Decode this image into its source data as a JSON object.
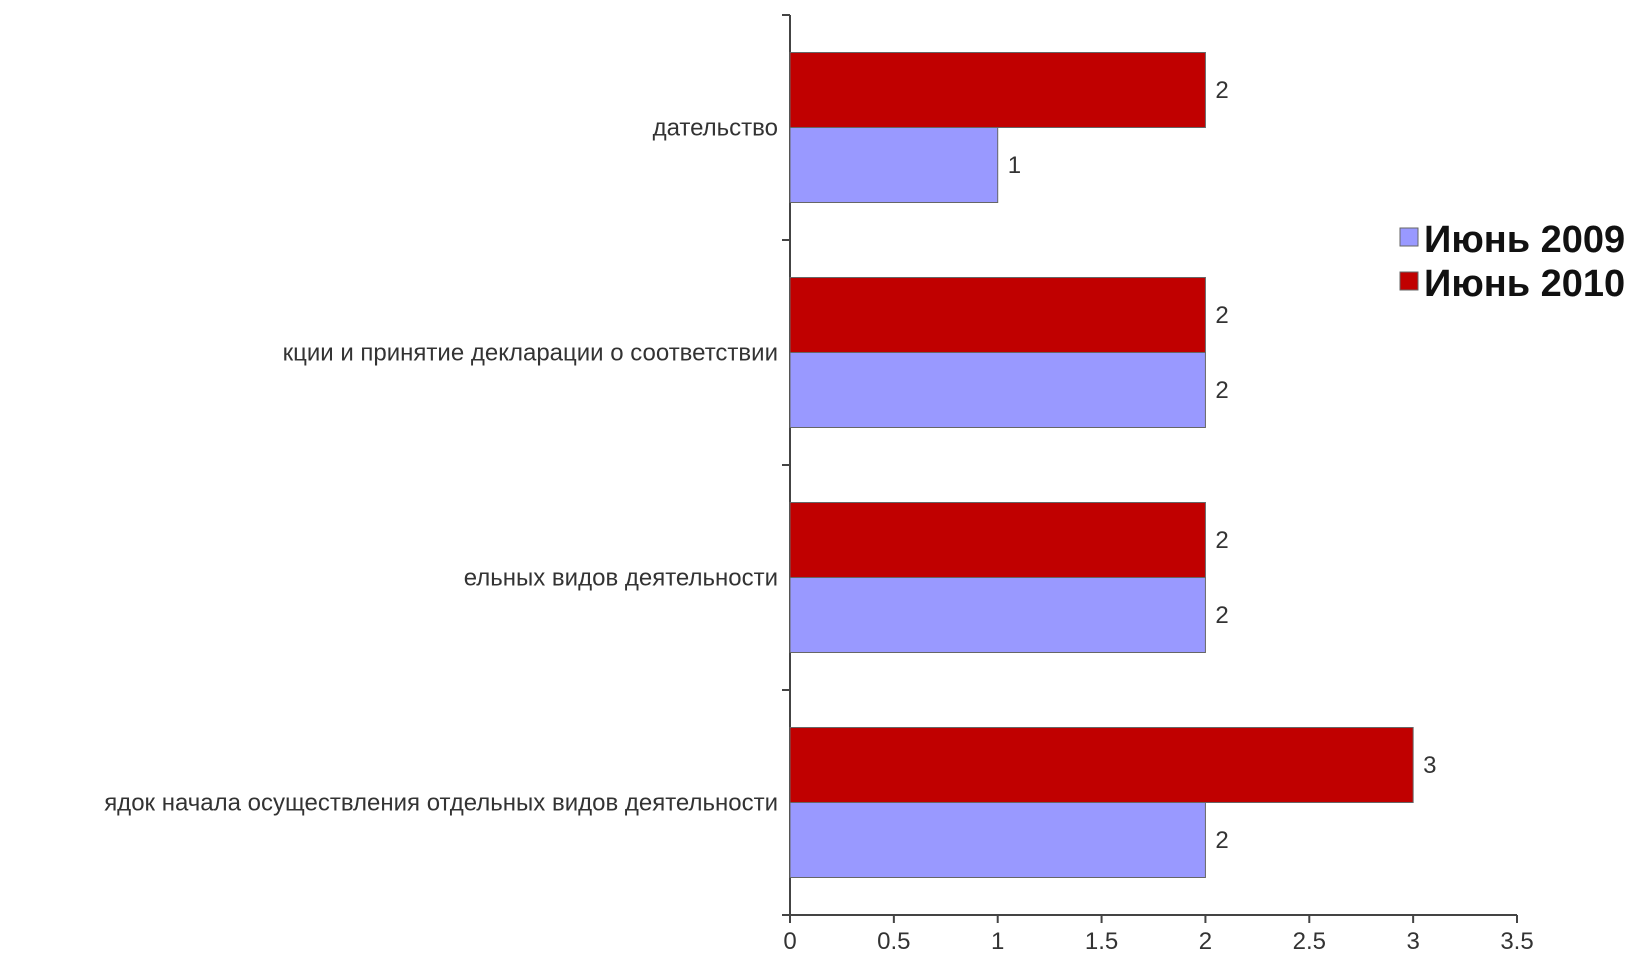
{
  "chart_data": {
    "type": "bar",
    "orientation": "horizontal",
    "title": "",
    "xlabel": "",
    "ylabel": "",
    "categories": [
      "дательство",
      "кции и принятие декларации о соответствии",
      "ельных видов деятельности",
      "ядок начала осуществления отдельных видов деятельности"
    ],
    "series": [
      {
        "name": "Июнь 2009",
        "color": "#9999ff",
        "values": [
          1,
          2,
          2,
          2
        ]
      },
      {
        "name": "Июнь 2010",
        "color": "#c00000",
        "values": [
          2,
          2,
          2,
          3
        ]
      }
    ],
    "xlim": [
      0,
      3.5
    ],
    "x_ticks": [
      "0",
      "0.5",
      "1",
      "1.5",
      "2",
      "2.5",
      "3",
      "3.5"
    ],
    "data_labels": true,
    "grid": false,
    "legend_position": "right"
  }
}
